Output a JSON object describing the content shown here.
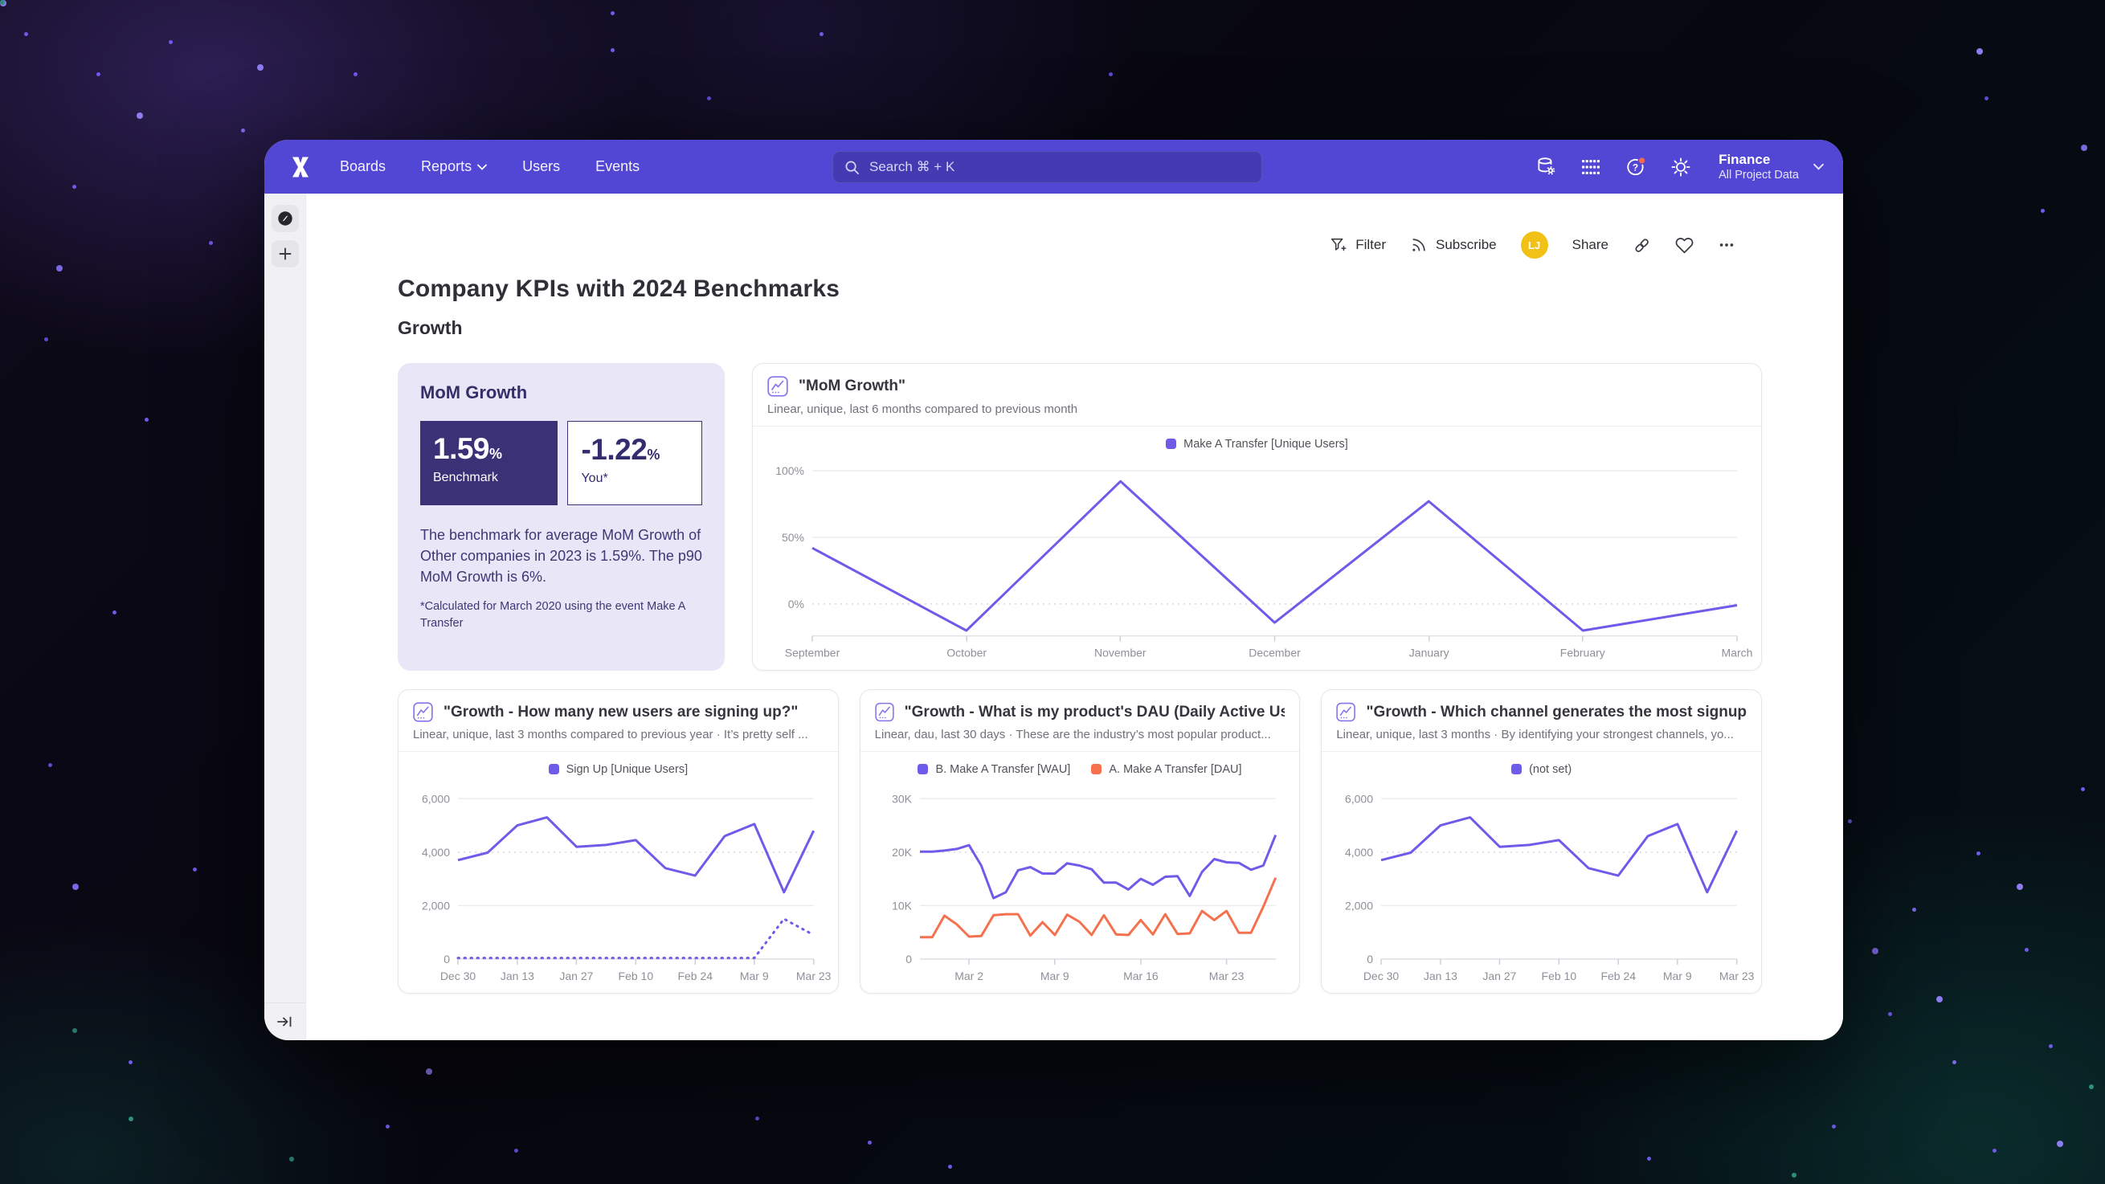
{
  "nav": {
    "items": [
      {
        "label": "Boards"
      },
      {
        "label": "Reports",
        "has_chevron": true
      },
      {
        "label": "Users"
      },
      {
        "label": "Events"
      }
    ],
    "search_placeholder": "Search  ⌘ + K",
    "project": {
      "name": "Finance",
      "scope": "All Project Data"
    }
  },
  "toolbar": {
    "filter_label": "Filter",
    "subscribe_label": "Subscribe",
    "avatar_initials": "LJ",
    "share_label": "Share"
  },
  "page": {
    "title": "Company KPIs with 2024 Benchmarks",
    "section": "Growth"
  },
  "benchmark_card": {
    "title": "MoM Growth",
    "benchmark_value": "1.59",
    "benchmark_unit": "%",
    "benchmark_label": "Benchmark",
    "you_value": "-1.22",
    "you_unit": "%",
    "you_label": "You*",
    "description": "The benchmark for average MoM Growth of Other companies in 2023 is 1.59%. The p90 MoM Growth is 6%.",
    "footnote": "*Calculated for March 2020 using the event Make A Transfer"
  },
  "colors": {
    "nav_purple": "#5247d5",
    "accent_purple": "#6e5bea",
    "accent_orange": "#f5714d",
    "navy": "#3a3177",
    "avatar_yellow": "#f2c117",
    "notification_red": "#f5694f"
  },
  "chart_data": {
    "mom": {
      "type": "line",
      "title": "\"MoM Growth\"",
      "subtitle": "Linear, unique, last 6 months compared to previous month",
      "ylim": [
        -24,
        106
      ],
      "yticks": [
        {
          "v": 0,
          "label": "0%",
          "dashed": true
        },
        {
          "v": 50,
          "label": "50%"
        },
        {
          "v": 100,
          "label": "100%"
        }
      ],
      "x_ticks": [
        {
          "pos": 0.0,
          "label": "September"
        },
        {
          "pos": 0.167,
          "label": "October"
        },
        {
          "pos": 0.333,
          "label": "November"
        },
        {
          "pos": 0.5,
          "label": "December"
        },
        {
          "pos": 0.667,
          "label": "January"
        },
        {
          "pos": 0.833,
          "label": "February"
        },
        {
          "pos": 1.0,
          "label": "March"
        }
      ],
      "series": [
        {
          "name": "Make A Transfer [Unique Users]",
          "color": "#6e5bea",
          "values": [
            42,
            -20,
            92,
            -14,
            77,
            -20,
            -1
          ]
        }
      ]
    },
    "signups": {
      "type": "line",
      "title": "\"Growth - How many new users are signing up?\"",
      "subtitle": "Linear, unique, last 3 months compared to previous year · It’s pretty self ...",
      "ylim": [
        0,
        6400
      ],
      "yticks": [
        {
          "v": 0,
          "label": "0"
        },
        {
          "v": 2000,
          "label": "2,000"
        },
        {
          "v": 4000,
          "label": "4,000",
          "dashed": true
        },
        {
          "v": 6000,
          "label": "6,000"
        }
      ],
      "x_ticks": [
        {
          "pos": 0.0,
          "label": "Dec 30"
        },
        {
          "pos": 0.167,
          "label": "Jan 13"
        },
        {
          "pos": 0.333,
          "label": "Jan 27"
        },
        {
          "pos": 0.5,
          "label": "Feb 10"
        },
        {
          "pos": 0.667,
          "label": "Feb 24"
        },
        {
          "pos": 0.833,
          "label": "Mar 9"
        },
        {
          "pos": 1.0,
          "label": "Mar 23"
        }
      ],
      "series": [
        {
          "name": "Sign Up [Unique Users]",
          "color": "#6e5bea",
          "values": [
            3700,
            3980,
            5000,
            5300,
            4200,
            4270,
            4450,
            3400,
            3120,
            4600,
            5050,
            2500,
            4800
          ]
        },
        {
          "name": "",
          "color": "#6e5bea",
          "dashed": true,
          "values": [
            40,
            40,
            40,
            40,
            40,
            40,
            40,
            40,
            40,
            40,
            40,
            1500,
            900
          ]
        }
      ]
    },
    "dau": {
      "type": "line",
      "title": "\"Growth - What is my product's DAU (Daily Active Us...",
      "subtitle": "Linear, dau, last 30 days · These are the industry’s most popular product...",
      "ylim": [
        0,
        32000
      ],
      "yticks": [
        {
          "v": 0,
          "label": "0"
        },
        {
          "v": 10000,
          "label": "10K"
        },
        {
          "v": 20000,
          "label": "20K",
          "dashed": true
        },
        {
          "v": 30000,
          "label": "30K"
        }
      ],
      "x_ticks": [
        {
          "pos": 0.138,
          "label": "Mar 2"
        },
        {
          "pos": 0.379,
          "label": "Mar 9"
        },
        {
          "pos": 0.621,
          "label": "Mar 16"
        },
        {
          "pos": 0.862,
          "label": "Mar 23"
        }
      ],
      "series": [
        {
          "name": "B. Make A Transfer [WAU]",
          "color": "#6e5bea",
          "values": [
            20100,
            20100,
            20300,
            20600,
            21300,
            17500,
            11400,
            12500,
            16600,
            17200,
            16000,
            16000,
            17900,
            17500,
            16800,
            14300,
            14300,
            13000,
            15000,
            13900,
            15400,
            15500,
            11800,
            16300,
            18700,
            18100,
            18000,
            16700,
            17500,
            23200
          ]
        },
        {
          "name": "A. Make A Transfer [DAU]",
          "color": "#f5714d",
          "values": [
            4100,
            4100,
            8100,
            6500,
            4200,
            4300,
            8200,
            8400,
            8400,
            4400,
            6900,
            4500,
            8300,
            7000,
            4500,
            8200,
            4600,
            4500,
            7300,
            4600,
            8400,
            4700,
            4800,
            9000,
            7300,
            9000,
            4900,
            4900,
            9800,
            15200
          ]
        }
      ]
    },
    "channels": {
      "type": "line",
      "title": "\"Growth - Which channel generates the most signup...",
      "subtitle": "Linear, unique, last 3 months · By identifying your strongest channels, yo...",
      "ylim": [
        0,
        6400
      ],
      "yticks": [
        {
          "v": 0,
          "label": "0"
        },
        {
          "v": 2000,
          "label": "2,000"
        },
        {
          "v": 4000,
          "label": "4,000",
          "dashed": true
        },
        {
          "v": 6000,
          "label": "6,000"
        }
      ],
      "x_ticks": [
        {
          "pos": 0.0,
          "label": "Dec 30"
        },
        {
          "pos": 0.167,
          "label": "Jan 13"
        },
        {
          "pos": 0.333,
          "label": "Jan 27"
        },
        {
          "pos": 0.5,
          "label": "Feb 10"
        },
        {
          "pos": 0.667,
          "label": "Feb 24"
        },
        {
          "pos": 0.833,
          "label": "Mar 9"
        },
        {
          "pos": 1.0,
          "label": "Mar 23"
        }
      ],
      "series": [
        {
          "name": "(not set)",
          "color": "#6e5bea",
          "values": [
            3700,
            3980,
            5000,
            5300,
            4200,
            4270,
            4450,
            3400,
            3120,
            4600,
            5050,
            2500,
            4800
          ]
        }
      ]
    }
  }
}
